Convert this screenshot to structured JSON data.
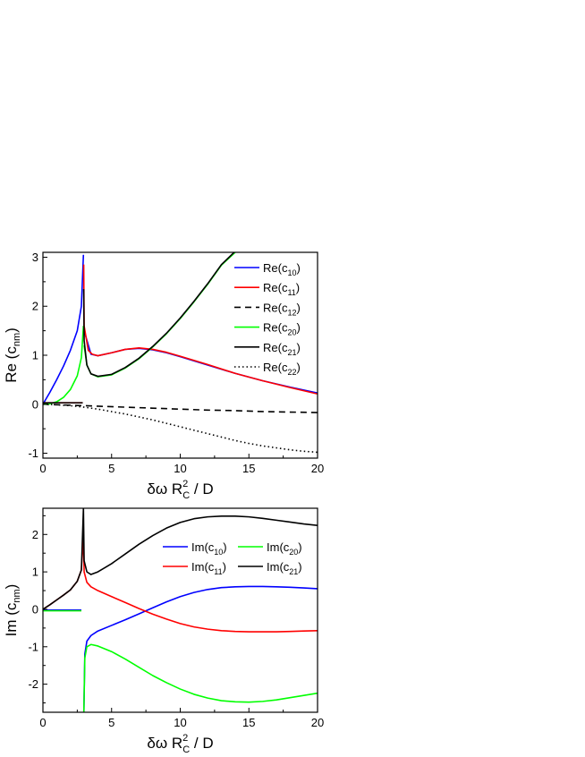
{
  "chart_data": [
    {
      "type": "line",
      "ylabel": "Re (c",
      "ylabel_sub": "nm",
      "ylabel_close": ")",
      "xlabel": {
        "pre": "δω R",
        "sup": "2",
        "sub": "C",
        "post": " / D"
      },
      "xlim": [
        0,
        20
      ],
      "ylim": [
        -1.1,
        3.1
      ],
      "x_ticks": [
        "0",
        "5",
        "10",
        "15",
        "20"
      ],
      "x_tick_values": [
        0,
        5,
        10,
        15,
        20
      ],
      "y_ticks": [
        "-1",
        "0",
        "1",
        "2",
        "3"
      ],
      "y_tick_values": [
        -1,
        0,
        1,
        2,
        3
      ],
      "grid": false,
      "legend_position": "top-right",
      "series": [
        {
          "name": "Re(c10)",
          "label_base": "Re(c",
          "label_sub": "10",
          "color": "#0000ff",
          "dash": "solid",
          "segments": [
            {
              "x": [
                0,
                0.5,
                1,
                1.5,
                2,
                2.5,
                2.8,
                2.95
              ],
              "y": [
                0,
                0.24,
                0.5,
                0.78,
                1.1,
                1.5,
                2.0,
                3.05
              ]
            },
            {
              "x": [
                3,
                3.5,
                4,
                5,
                6,
                7,
                8,
                9,
                10,
                12,
                14,
                16,
                18,
                20
              ],
              "y": [
                1.5,
                1.02,
                0.99,
                1.05,
                1.12,
                1.14,
                1.11,
                1.05,
                0.97,
                0.8,
                0.63,
                0.48,
                0.35,
                0.23
              ]
            }
          ]
        },
        {
          "name": "Re(c11)",
          "label_base": "Re(c",
          "label_sub": "11",
          "color": "#ff0000",
          "dash": "solid",
          "segments": [
            {
              "x": [
                0,
                1,
                2,
                2.9
              ],
              "y": [
                0.03,
                0.03,
                0.03,
                0.03
              ]
            },
            {
              "x": [
                2.97,
                3.0,
                3.3,
                3.6,
                4,
                5,
                6,
                7,
                8,
                9,
                10,
                12,
                14,
                16,
                18,
                20
              ],
              "y": [
                2.85,
                1.6,
                1.1,
                1.02,
                0.99,
                1.05,
                1.12,
                1.15,
                1.12,
                1.06,
                0.98,
                0.81,
                0.63,
                0.48,
                0.34,
                0.21
              ]
            }
          ]
        },
        {
          "name": "Re(c12)",
          "label_base": "Re(c",
          "label_sub": "12",
          "color": "#000000",
          "dash": "dash",
          "segments": [
            {
              "x": [
                0,
                2,
                4,
                6,
                8,
                10,
                12,
                14,
                16,
                18,
                20
              ],
              "y": [
                0,
                -0.02,
                -0.04,
                -0.06,
                -0.08,
                -0.1,
                -0.12,
                -0.13,
                -0.15,
                -0.16,
                -0.17
              ]
            }
          ]
        },
        {
          "name": "Re(c20)",
          "label_base": "Re(c",
          "label_sub": "20",
          "color": "#00ff00",
          "dash": "solid",
          "segments": [
            {
              "x": [
                0,
                0.5,
                1,
                1.5,
                2,
                2.5,
                2.8,
                2.95
              ],
              "y": [
                0,
                0.01,
                0.05,
                0.14,
                0.3,
                0.58,
                0.95,
                1.6
              ]
            },
            {
              "x": [
                3.0,
                3.2,
                3.5,
                4,
                5,
                6,
                7,
                8,
                9,
                10,
                11,
                12,
                13,
                14
              ],
              "y": [
                1.2,
                0.8,
                0.62,
                0.56,
                0.6,
                0.74,
                0.93,
                1.17,
                1.44,
                1.75,
                2.09,
                2.45,
                2.84,
                3.1
              ]
            }
          ]
        },
        {
          "name": "Re(c21)",
          "label_base": "Re(c",
          "label_sub": "21",
          "color": "#000000",
          "dash": "solid",
          "segments": [
            {
              "x": [
                0,
                1,
                2,
                2.9
              ],
              "y": [
                0.03,
                0.03,
                0.03,
                0.03
              ]
            },
            {
              "x": [
                2.97,
                3.0,
                3.2,
                3.5,
                4,
                5,
                6,
                7,
                8,
                9,
                10,
                11,
                12,
                13,
                14
              ],
              "y": [
                2.35,
                1.3,
                0.8,
                0.62,
                0.57,
                0.61,
                0.75,
                0.94,
                1.18,
                1.45,
                1.76,
                2.1,
                2.46,
                2.85,
                3.12
              ]
            }
          ]
        },
        {
          "name": "Re(c22)",
          "label_base": "Re(c",
          "label_sub": "22",
          "color": "#000000",
          "dash": "dot",
          "segments": [
            {
              "x": [
                0,
                1,
                2,
                3,
                4,
                5,
                6,
                7,
                8,
                9,
                10,
                11,
                12,
                13,
                14,
                15,
                16,
                17,
                18,
                19,
                20
              ],
              "y": [
                0,
                -0.01,
                -0.03,
                -0.06,
                -0.1,
                -0.15,
                -0.2,
                -0.26,
                -0.32,
                -0.39,
                -0.46,
                -0.53,
                -0.6,
                -0.67,
                -0.74,
                -0.8,
                -0.85,
                -0.89,
                -0.93,
                -0.96,
                -0.98
              ]
            }
          ]
        }
      ]
    },
    {
      "type": "line",
      "ylabel": "Im (c",
      "ylabel_sub": "nm",
      "ylabel_close": ")",
      "xlabel": {
        "pre": "δω R",
        "sup": "2",
        "sub": "C",
        "post": " / D"
      },
      "xlim": [
        0,
        20
      ],
      "ylim": [
        -2.75,
        2.7
      ],
      "x_ticks": [
        "0",
        "5",
        "10",
        "15",
        "20"
      ],
      "x_tick_values": [
        0,
        5,
        10,
        15,
        20
      ],
      "y_ticks": [
        "-2",
        "-1",
        "0",
        "1",
        "2"
      ],
      "y_tick_values": [
        -2,
        -1,
        0,
        1,
        2
      ],
      "grid": false,
      "legend_position": "top-right",
      "series": [
        {
          "name": "Im(c10)",
          "label_base": "Im(c",
          "label_sub": "10",
          "color": "#0000ff",
          "dash": "solid",
          "segments": [
            {
              "x": [
                0,
                1,
                2,
                2.8
              ],
              "y": [
                -0.02,
                -0.02,
                -0.02,
                -0.02
              ]
            },
            {
              "x": [
                2.98,
                3.05,
                3.2,
                3.5,
                4,
                5,
                6,
                7,
                8,
                9,
                10,
                11,
                12,
                13,
                14,
                15,
                16,
                17,
                18,
                19,
                20
              ],
              "y": [
                -2.75,
                -1.2,
                -0.85,
                -0.7,
                -0.58,
                -0.43,
                -0.28,
                -0.12,
                0.04,
                0.2,
                0.34,
                0.45,
                0.53,
                0.58,
                0.6,
                0.61,
                0.61,
                0.6,
                0.59,
                0.57,
                0.55
              ]
            }
          ]
        },
        {
          "name": "Im(c11)",
          "label_base": "Im(c",
          "label_sub": "11",
          "color": "#ff0000",
          "dash": "solid",
          "segments": [
            {
              "x": [
                0,
                0.5,
                1,
                1.5,
                2,
                2.5,
                2.8,
                2.95,
                3.0,
                3.2,
                3.5,
                4,
                5,
                6,
                7,
                8,
                9,
                10,
                11,
                12,
                13,
                14,
                15,
                16,
                17,
                18,
                19,
                20
              ],
              "y": [
                0,
                0.12,
                0.25,
                0.38,
                0.52,
                0.75,
                1.05,
                2.0,
                1.0,
                0.72,
                0.6,
                0.5,
                0.34,
                0.18,
                0.02,
                -0.13,
                -0.26,
                -0.38,
                -0.47,
                -0.53,
                -0.57,
                -0.59,
                -0.6,
                -0.6,
                -0.6,
                -0.59,
                -0.58,
                -0.57
              ]
            }
          ]
        },
        {
          "name": "Im(c20)",
          "label_base": "Im(c",
          "label_sub": "20",
          "color": "#00ff00",
          "dash": "solid",
          "segments": [
            {
              "x": [
                0,
                1,
                2,
                2.8
              ],
              "y": [
                -0.04,
                -0.04,
                -0.04,
                -0.04
              ]
            },
            {
              "x": [
                2.98,
                3.05,
                3.2,
                3.5,
                4,
                5,
                6,
                7,
                8,
                9,
                10,
                11,
                12,
                13,
                14,
                15,
                16,
                17,
                18,
                19,
                20
              ],
              "y": [
                -2.75,
                -1.3,
                -1.0,
                -0.94,
                -0.98,
                -1.13,
                -1.33,
                -1.55,
                -1.77,
                -1.96,
                -2.13,
                -2.27,
                -2.37,
                -2.44,
                -2.47,
                -2.48,
                -2.46,
                -2.42,
                -2.36,
                -2.3,
                -2.24
              ]
            }
          ]
        },
        {
          "name": "Im(c21)",
          "label_base": "Im(c",
          "label_sub": "21",
          "color": "#000000",
          "dash": "solid",
          "segments": [
            {
              "x": [
                0,
                0.5,
                1,
                1.5,
                2,
                2.5,
                2.8,
                2.95,
                3.0,
                3.2,
                3.5,
                4,
                5,
                6,
                7,
                8,
                9,
                10,
                11,
                12,
                13,
                14,
                15,
                16,
                17,
                18,
                19,
                20
              ],
              "y": [
                0,
                0.12,
                0.25,
                0.38,
                0.52,
                0.75,
                1.05,
                2.7,
                1.3,
                1.0,
                0.93,
                1.0,
                1.22,
                1.48,
                1.74,
                1.97,
                2.17,
                2.32,
                2.42,
                2.47,
                2.49,
                2.49,
                2.47,
                2.43,
                2.38,
                2.33,
                2.28,
                2.24
              ]
            }
          ]
        }
      ]
    }
  ]
}
